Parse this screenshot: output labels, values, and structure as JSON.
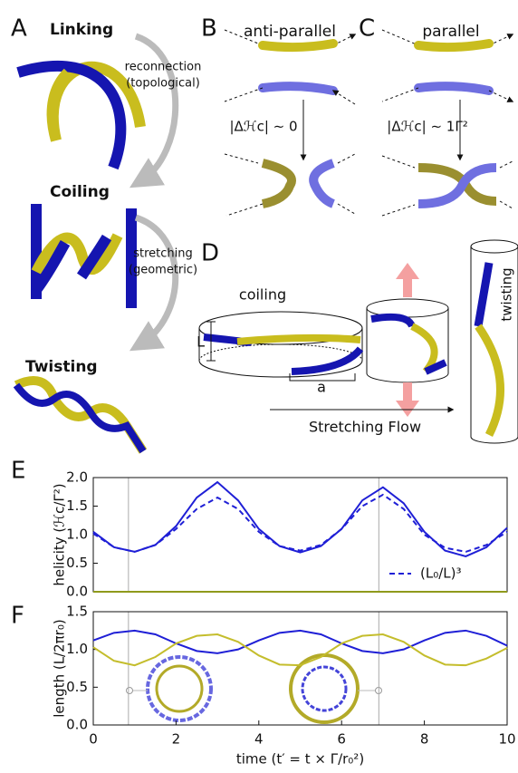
{
  "panel_labels": [
    "A",
    "B",
    "C",
    "D",
    "E",
    "F"
  ],
  "panel_a": {
    "stages": [
      "Linking",
      "Coiling",
      "Twisting"
    ],
    "transitions": [
      {
        "line1": "reconnection",
        "line2": "(topological)"
      },
      {
        "line1": "stretching",
        "line2": "(geometric)"
      }
    ]
  },
  "panel_b": {
    "title": "anti-parallel",
    "equation": "|Δℋc| ∼ 0"
  },
  "panel_c": {
    "title": "parallel",
    "equation": "|Δℋc| ∼ 1Γ²"
  },
  "panel_d": {
    "coiling": "coiling",
    "length_symbol": "L",
    "radius_symbol": "a",
    "flow": "Stretching Flow",
    "twisting": "twisting"
  },
  "chart_data": [
    {
      "type": "line",
      "ylabel": "helicity (ℋc/Γ²)",
      "x": [
        0,
        0.5,
        1,
        1.5,
        2,
        2.5,
        3,
        3.5,
        4,
        4.5,
        5,
        5.5,
        6,
        6.5,
        7,
        7.5,
        8,
        8.5,
        9,
        9.5,
        10
      ],
      "xlim": [
        0,
        10
      ],
      "ylim": [
        0,
        2.0
      ],
      "yticks": [
        {
          "value": 0,
          "label": "0.0"
        },
        {
          "value": 0.5,
          "label": "0.5"
        },
        {
          "value": 1,
          "label": "1.0"
        },
        {
          "value": 1.5,
          "label": "1.5"
        },
        {
          "value": 2,
          "label": "2.0"
        }
      ],
      "vlines": [
        0.85,
        6.9
      ],
      "legend": "lower right",
      "series": [
        {
          "color": "#1f1fd6",
          "style": "solid",
          "values": [
            1.05,
            0.78,
            0.7,
            0.82,
            1.15,
            1.65,
            1.92,
            1.6,
            1.1,
            0.8,
            0.69,
            0.8,
            1.1,
            1.6,
            1.83,
            1.55,
            1.05,
            0.72,
            0.62,
            0.78,
            1.12
          ]
        },
        {
          "name": "(L₀/L)³",
          "color": "#1f1fd6",
          "style": "dashed",
          "values": [
            1.02,
            0.78,
            0.7,
            0.82,
            1.1,
            1.45,
            1.65,
            1.45,
            1.05,
            0.8,
            0.72,
            0.82,
            1.1,
            1.5,
            1.7,
            1.45,
            1.0,
            0.77,
            0.7,
            0.82,
            1.05
          ]
        },
        {
          "color": "#8f9a1c",
          "style": "solid",
          "values": [
            0,
            0,
            0,
            0,
            0,
            0,
            0,
            0,
            0,
            0,
            0,
            0,
            0,
            0,
            0,
            0,
            0,
            0,
            0,
            0,
            0
          ]
        }
      ]
    },
    {
      "type": "line",
      "ylabel": "length (L/2πr₀)",
      "xlabel": "time (t′ = t × Γ/r₀²)",
      "x": [
        0,
        0.5,
        1,
        1.5,
        2,
        2.5,
        3,
        3.5,
        4,
        4.5,
        5,
        5.5,
        6,
        6.5,
        7,
        7.5,
        8,
        8.5,
        9,
        9.5,
        10
      ],
      "xlim": [
        0,
        10
      ],
      "ylim": [
        0,
        1.5
      ],
      "xticks": [
        0,
        2,
        4,
        6,
        8,
        10
      ],
      "yticks": [
        {
          "value": 0,
          "label": "0.0"
        },
        {
          "value": 0.5,
          "label": "0.5"
        },
        {
          "value": 1,
          "label": "1.0"
        },
        {
          "value": 1.5,
          "label": "1.5"
        }
      ],
      "vlines": [
        0.85,
        6.9
      ],
      "series": [
        {
          "color": "#1f1fd6",
          "style": "solid",
          "values": [
            1.12,
            1.22,
            1.25,
            1.2,
            1.08,
            0.98,
            0.95,
            1.0,
            1.12,
            1.22,
            1.25,
            1.2,
            1.08,
            0.98,
            0.95,
            1.0,
            1.12,
            1.22,
            1.25,
            1.18,
            1.05
          ]
        },
        {
          "color": "#c4bd2c",
          "style": "solid",
          "values": [
            1.03,
            0.85,
            0.79,
            0.9,
            1.08,
            1.18,
            1.2,
            1.1,
            0.92,
            0.8,
            0.79,
            0.9,
            1.08,
            1.18,
            1.2,
            1.1,
            0.92,
            0.8,
            0.79,
            0.88,
            1.02
          ]
        }
      ]
    }
  ]
}
